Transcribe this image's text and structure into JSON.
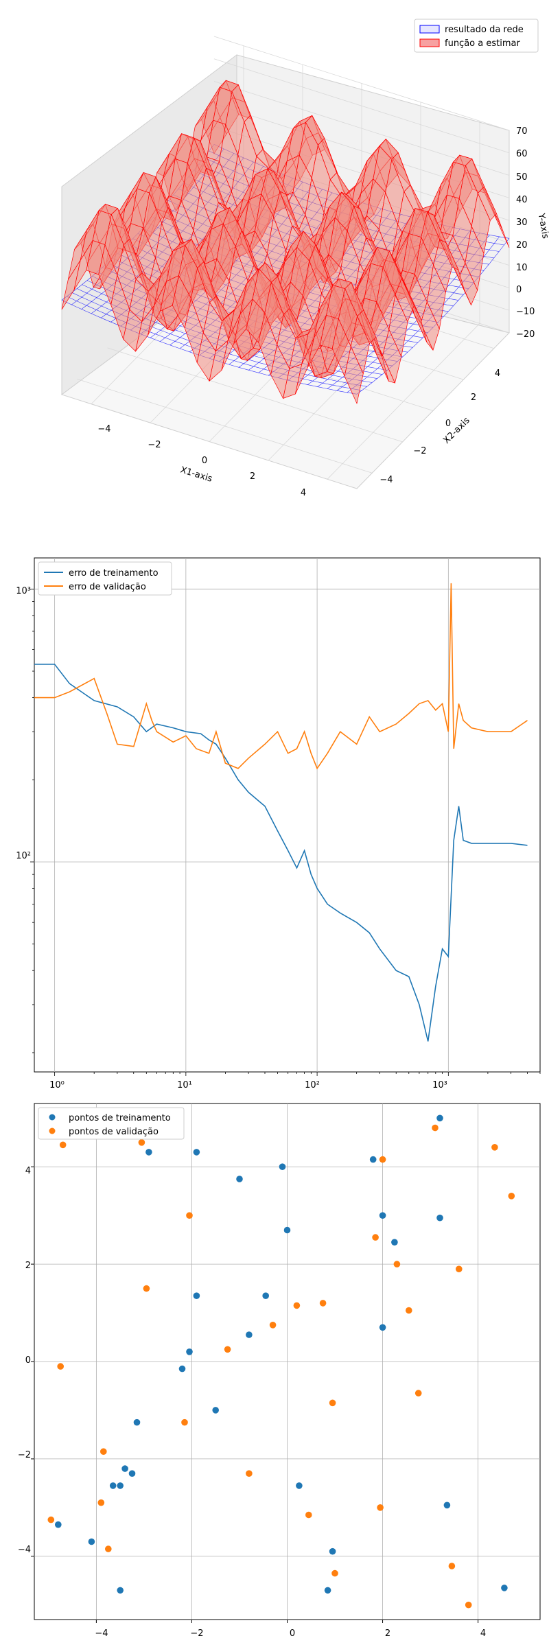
{
  "colors": {
    "training": "#1f77b4",
    "validation": "#ff7f0e",
    "network_surface": "#0000ff",
    "target_surface": "#ff0000",
    "grid": "#b0b0b0"
  },
  "chart_data": [
    {
      "type": "surface3d",
      "legend": {
        "placement": "top-right",
        "entries": [
          "resultado da rede",
          "função a estimar"
        ]
      },
      "xlabel": "X1-axis",
      "ylabel": "X2-axis",
      "zlabel": "Y-axis",
      "xlim": [
        -5,
        5
      ],
      "ylim": [
        -5,
        5
      ],
      "zlim": [
        -20,
        70
      ],
      "xticks": [
        "−4",
        "−2",
        "0",
        "2",
        "4"
      ],
      "yticks": [
        "−4",
        "−2",
        "0",
        "2",
        "4"
      ],
      "zticks": [
        "−20",
        "−10",
        "0",
        "10",
        "20",
        "30",
        "40",
        "50",
        "60",
        "70"
      ],
      "series": [
        {
          "name": "resultado da rede",
          "kind": "wireframe surface",
          "approx_value_range": [
            5,
            30
          ]
        },
        {
          "name": "função a estimar",
          "kind": "surface",
          "approx_value_range": [
            -20,
            70
          ]
        }
      ],
      "grid": true
    },
    {
      "type": "line",
      "xscale": "log",
      "yscale": "log",
      "xlim": [
        0.7,
        5000
      ],
      "ylim": [
        17,
        1300
      ],
      "xticks": [
        "10⁰",
        "10¹",
        "10²",
        "10³"
      ],
      "yticks": [
        "10²",
        "10³"
      ],
      "legend": {
        "placement": "top-left",
        "entries": [
          "erro de treinamento",
          "erro de validação"
        ]
      },
      "grid": true,
      "series": [
        {
          "name": "erro de treinamento",
          "x": [
            0.7,
            1,
            1.3,
            2,
            3,
            4,
            5,
            6,
            8,
            10,
            13,
            15,
            17,
            20,
            25,
            30,
            40,
            50,
            60,
            70,
            80,
            90,
            100,
            120,
            150,
            200,
            250,
            300,
            400,
            500,
            600,
            700,
            800,
            900,
            1000,
            1100,
            1200,
            1300,
            1500,
            2000,
            3000,
            4000
          ],
          "y": [
            530,
            530,
            450,
            390,
            370,
            340,
            300,
            320,
            310,
            300,
            295,
            280,
            270,
            240,
            200,
            180,
            160,
            130,
            110,
            95,
            110,
            90,
            80,
            70,
            65,
            60,
            55,
            48,
            40,
            38,
            30,
            22,
            35,
            48,
            45,
            120,
            160,
            120,
            117,
            117,
            117,
            115
          ]
        },
        {
          "name": "erro de validação",
          "x": [
            0.7,
            1,
            1.3,
            2,
            2.5,
            3,
            4,
            5,
            5.5,
            6,
            8,
            10,
            12,
            15,
            17,
            20,
            25,
            30,
            40,
            50,
            60,
            70,
            80,
            90,
            100,
            120,
            150,
            200,
            250,
            300,
            400,
            500,
            600,
            700,
            800,
            900,
            1000,
            1050,
            1100,
            1200,
            1300,
            1500,
            2000,
            3000,
            4000
          ],
          "y": [
            400,
            400,
            420,
            470,
            350,
            270,
            265,
            380,
            330,
            300,
            275,
            290,
            260,
            250,
            300,
            230,
            220,
            240,
            270,
            300,
            250,
            260,
            300,
            250,
            220,
            250,
            300,
            270,
            340,
            300,
            320,
            350,
            380,
            390,
            360,
            380,
            300,
            1050,
            260,
            380,
            330,
            310,
            300,
            300,
            330
          ]
        }
      ]
    },
    {
      "type": "scatter",
      "xlim": [
        -5.3,
        5.3
      ],
      "ylim": [
        -5.3,
        5.3
      ],
      "xticks": [
        "−4",
        "−2",
        "0",
        "2",
        "4"
      ],
      "yticks": [
        "−4",
        "−2",
        "0",
        "2",
        "4"
      ],
      "legend": {
        "placement": "top-left",
        "entries": [
          "pontos de treinamento",
          "pontos de validação"
        ]
      },
      "grid": true,
      "series": [
        {
          "name": "pontos de treinamento",
          "points": [
            [
              3.2,
              5.0
            ],
            [
              -2.9,
              4.3
            ],
            [
              -1.9,
              4.3
            ],
            [
              -1.0,
              3.75
            ],
            [
              -0.1,
              4.0
            ],
            [
              1.8,
              4.15
            ],
            [
              2.0,
              3.0
            ],
            [
              3.2,
              2.95
            ],
            [
              2.25,
              2.45
            ],
            [
              0.0,
              2.7
            ],
            [
              -1.9,
              1.35
            ],
            [
              -0.45,
              1.35
            ],
            [
              -0.8,
              0.55
            ],
            [
              2.0,
              0.7
            ],
            [
              -2.05,
              0.2
            ],
            [
              -2.2,
              -0.15
            ],
            [
              -1.5,
              -1.0
            ],
            [
              -3.15,
              -1.25
            ],
            [
              -3.4,
              -2.2
            ],
            [
              -3.25,
              -2.3
            ],
            [
              -3.65,
              -2.55
            ],
            [
              -3.5,
              -2.55
            ],
            [
              0.25,
              -2.55
            ],
            [
              3.35,
              -2.95
            ],
            [
              -4.8,
              -3.35
            ],
            [
              -4.1,
              -3.7
            ],
            [
              0.95,
              -3.9
            ],
            [
              -3.5,
              -4.7
            ],
            [
              0.85,
              -4.7
            ],
            [
              4.55,
              -4.65
            ]
          ]
        },
        {
          "name": "pontos de validação",
          "points": [
            [
              -4.7,
              4.45
            ],
            [
              -3.05,
              4.5
            ],
            [
              3.1,
              4.8
            ],
            [
              4.35,
              4.4
            ],
            [
              2.0,
              4.15
            ],
            [
              4.7,
              3.4
            ],
            [
              -2.05,
              3.0
            ],
            [
              1.85,
              2.55
            ],
            [
              2.3,
              2.0
            ],
            [
              3.6,
              1.9
            ],
            [
              -2.95,
              1.5
            ],
            [
              0.2,
              1.15
            ],
            [
              0.75,
              1.2
            ],
            [
              2.55,
              1.05
            ],
            [
              -0.3,
              0.75
            ],
            [
              -1.25,
              0.25
            ],
            [
              -4.75,
              -0.1
            ],
            [
              2.75,
              -0.65
            ],
            [
              0.95,
              -0.85
            ],
            [
              -2.15,
              -1.25
            ],
            [
              -3.85,
              -1.85
            ],
            [
              -0.8,
              -2.3
            ],
            [
              -3.9,
              -2.9
            ],
            [
              1.95,
              -3.0
            ],
            [
              -4.95,
              -3.25
            ],
            [
              0.45,
              -3.15
            ],
            [
              -3.75,
              -3.85
            ],
            [
              3.45,
              -4.2
            ],
            [
              1.0,
              -4.35
            ],
            [
              3.8,
              -5.0
            ]
          ]
        }
      ]
    }
  ]
}
